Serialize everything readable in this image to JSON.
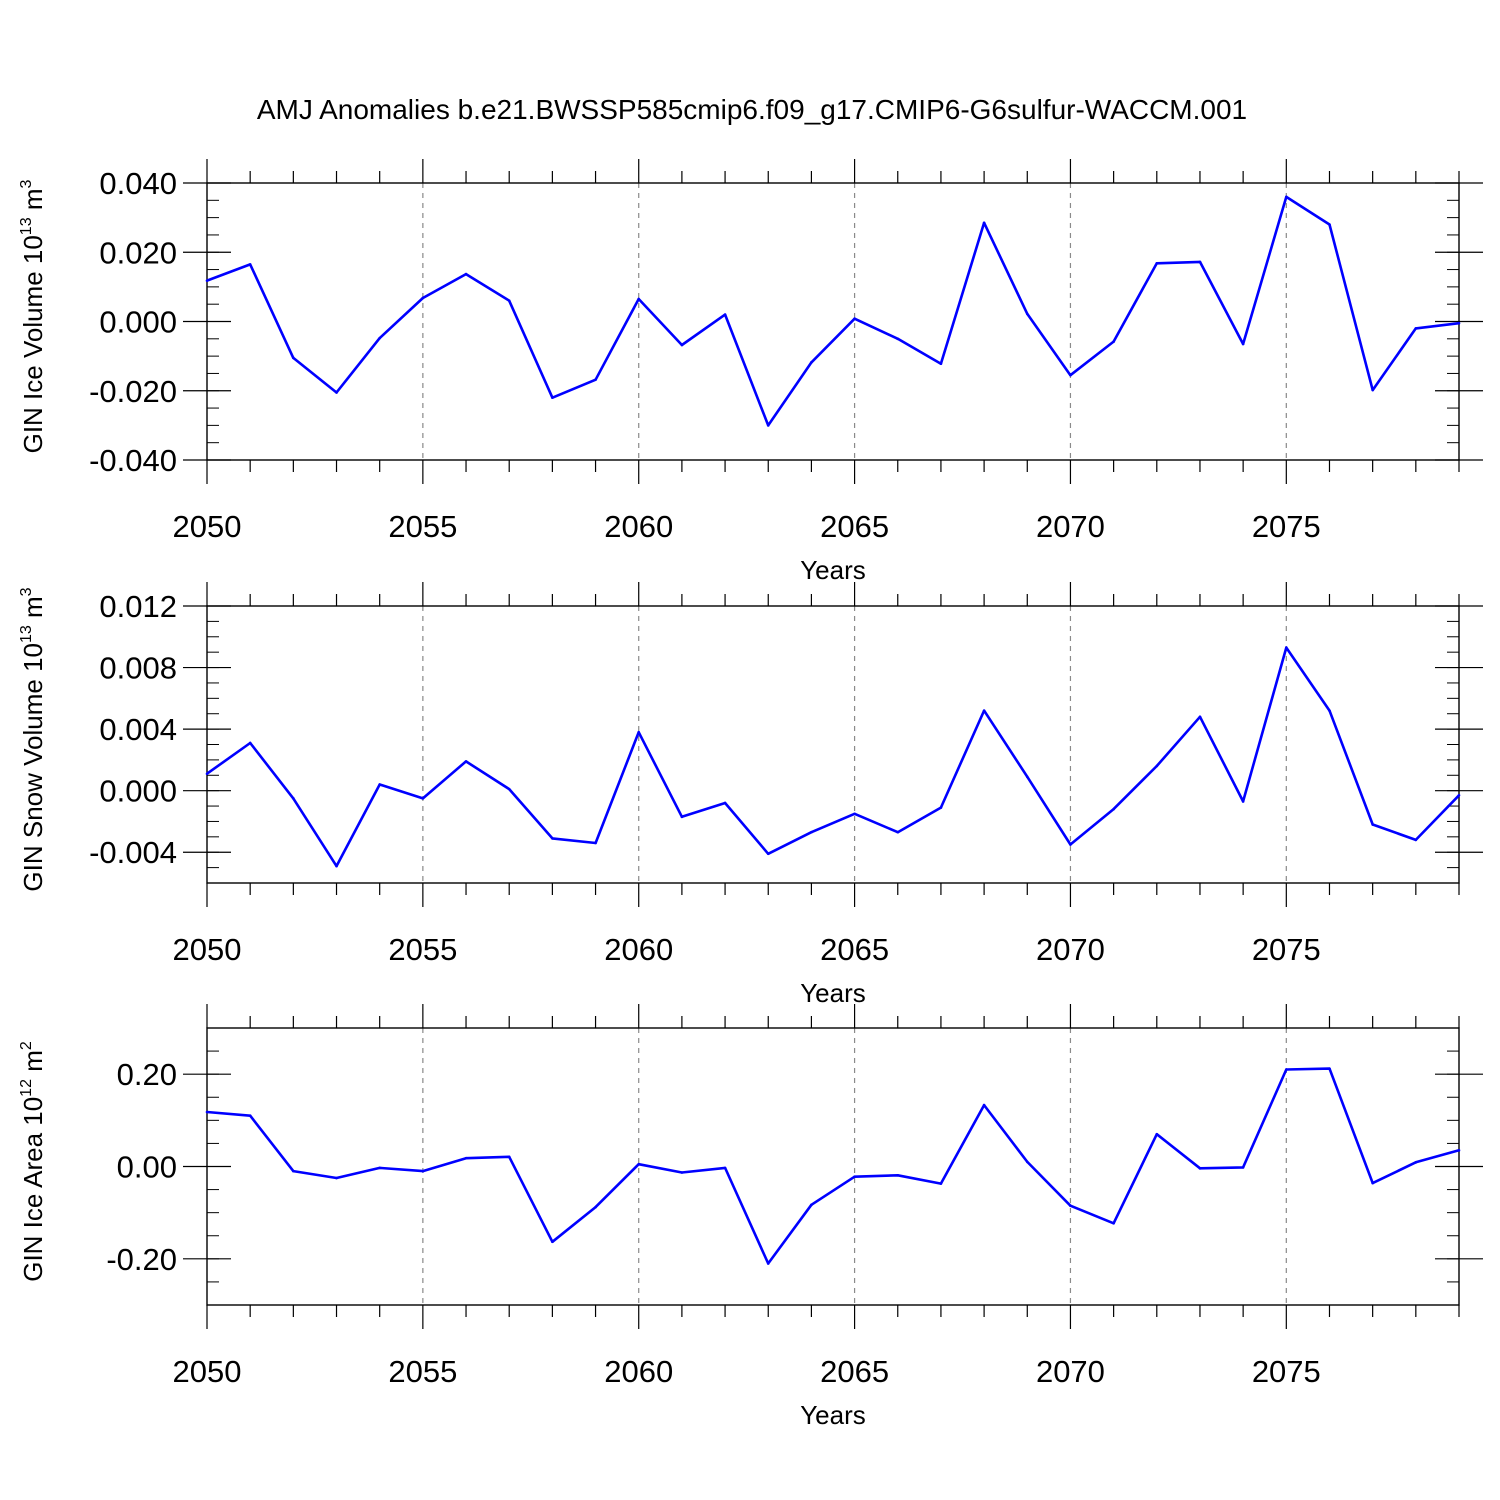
{
  "figure_title": "AMJ Anomalies b.e21.BWSSP585cmip6.f09_g17.CMIP6-G6sulfur-WACCM.001",
  "colors": {
    "line": "#0000ff",
    "axis": "#000000",
    "grid": "#8a8a8a"
  },
  "chart_data": [
    {
      "type": "line",
      "title": "",
      "xlabel": "Years",
      "ylabel": "GIN Ice Volume",
      "ylabel_unit_base": "10",
      "ylabel_unit_exp": "13",
      "ylabel_unit_suffix": "m",
      "ylabel_unit_suffix_exp": "3",
      "xlim": [
        2050,
        2079
      ],
      "ylim": [
        -0.04,
        0.04
      ],
      "xticks": [
        2050,
        2055,
        2060,
        2065,
        2070,
        2075
      ],
      "xtick_labels": [
        "2050",
        "2055",
        "2060",
        "2065",
        "2070",
        "2075"
      ],
      "yticks": [
        0.04,
        0.02,
        0.0,
        -0.02,
        -0.04
      ],
      "ytick_labels": [
        "0.040",
        "0.020",
        "0.000",
        "-0.020",
        "-0.040"
      ],
      "x_grid": "dashed",
      "x": [
        2050,
        2051,
        2052,
        2053,
        2054,
        2055,
        2056,
        2057,
        2058,
        2059,
        2060,
        2061,
        2062,
        2063,
        2064,
        2065,
        2066,
        2067,
        2068,
        2069,
        2070,
        2071,
        2072,
        2073,
        2074,
        2075,
        2076,
        2077,
        2078,
        2079
      ],
      "values": [
        0.0118,
        0.0165,
        -0.0105,
        -0.0205,
        -0.0048,
        0.0068,
        0.0137,
        0.006,
        -0.022,
        -0.0168,
        0.0065,
        -0.0068,
        0.002,
        -0.03,
        -0.0118,
        0.0008,
        -0.005,
        -0.0122,
        0.0285,
        0.0022,
        -0.0155,
        -0.0058,
        0.0168,
        0.0172,
        -0.0065,
        0.036,
        0.028,
        -0.0198,
        -0.002,
        -0.0005
      ]
    },
    {
      "type": "line",
      "title": "",
      "xlabel": "Years",
      "ylabel": "GIN Snow Volume",
      "ylabel_unit_base": "10",
      "ylabel_unit_exp": "13",
      "ylabel_unit_suffix": "m",
      "ylabel_unit_suffix_exp": "3",
      "xlim": [
        2050,
        2079
      ],
      "ylim": [
        -0.006,
        0.012
      ],
      "xticks": [
        2050,
        2055,
        2060,
        2065,
        2070,
        2075
      ],
      "xtick_labels": [
        "2050",
        "2055",
        "2060",
        "2065",
        "2070",
        "2075"
      ],
      "yticks": [
        0.012,
        0.008,
        0.004,
        0.0,
        -0.004
      ],
      "ytick_labels": [
        "0.012",
        "0.008",
        "0.004",
        "0.000",
        "-0.004"
      ],
      "x_grid": "dashed",
      "x": [
        2050,
        2051,
        2052,
        2053,
        2054,
        2055,
        2056,
        2057,
        2058,
        2059,
        2060,
        2061,
        2062,
        2063,
        2064,
        2065,
        2066,
        2067,
        2068,
        2069,
        2070,
        2071,
        2072,
        2073,
        2074,
        2075,
        2076,
        2077,
        2078,
        2079
      ],
      "values": [
        0.0011,
        0.0031,
        -0.0005,
        -0.0049,
        0.0004,
        -0.0005,
        0.0019,
        0.0001,
        -0.0031,
        -0.0034,
        0.0038,
        -0.0017,
        -0.0008,
        -0.0041,
        -0.0027,
        -0.0015,
        -0.0027,
        -0.0011,
        0.0052,
        0.0009,
        -0.0035,
        -0.0012,
        0.0016,
        0.0048,
        -0.0007,
        0.0093,
        0.0052,
        -0.0022,
        -0.0032,
        -0.0003
      ]
    },
    {
      "type": "line",
      "title": "",
      "xlabel": "Years",
      "ylabel": "GIN Ice Area",
      "ylabel_unit_base": "10",
      "ylabel_unit_exp": "12",
      "ylabel_unit_suffix": "m",
      "ylabel_unit_suffix_exp": "2",
      "xlim": [
        2050,
        2079
      ],
      "ylim": [
        -0.3,
        0.3
      ],
      "xticks": [
        2050,
        2055,
        2060,
        2065,
        2070,
        2075
      ],
      "xtick_labels": [
        "2050",
        "2055",
        "2060",
        "2065",
        "2070",
        "2075"
      ],
      "yticks": [
        0.2,
        0.0,
        -0.2
      ],
      "ytick_labels": [
        "0.20",
        "0.00",
        "-0.20"
      ],
      "x_grid": "dashed",
      "x": [
        2050,
        2051,
        2052,
        2053,
        2054,
        2055,
        2056,
        2057,
        2058,
        2059,
        2060,
        2061,
        2062,
        2063,
        2064,
        2065,
        2066,
        2067,
        2068,
        2069,
        2070,
        2071,
        2072,
        2073,
        2074,
        2075,
        2076,
        2077,
        2078,
        2079
      ],
      "values": [
        0.118,
        0.11,
        -0.01,
        -0.025,
        -0.003,
        -0.01,
        0.018,
        0.021,
        -0.163,
        -0.088,
        0.005,
        -0.013,
        -0.003,
        -0.21,
        -0.083,
        -0.022,
        -0.019,
        -0.037,
        0.133,
        0.01,
        -0.085,
        -0.123,
        0.07,
        -0.004,
        -0.002,
        0.21,
        0.212,
        -0.036,
        0.009,
        0.035
      ]
    }
  ]
}
